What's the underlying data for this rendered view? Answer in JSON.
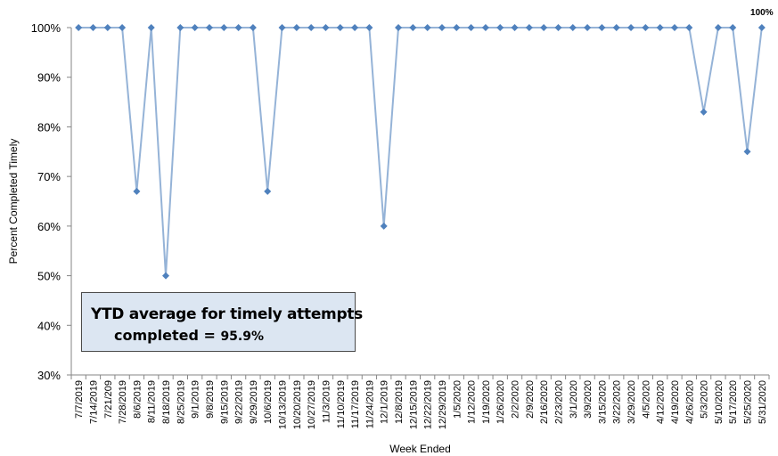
{
  "chart_data": {
    "type": "line",
    "xlabel": "Week Ended",
    "ylabel": "Percent Completed Timely",
    "ylim": [
      30,
      100
    ],
    "yticks": [
      "30%",
      "40%",
      "50%",
      "60%",
      "70%",
      "80%",
      "90%",
      "100%"
    ],
    "grid": false,
    "legend": "none",
    "series_color": "#4f81bd",
    "line_color": "#95b3d7",
    "categories": [
      "7/7/2019",
      "7/14/2019",
      "7/21/209",
      "7/28/2019",
      "8/6/2019",
      "8/11/2019",
      "8/18/2019",
      "8/25/2019",
      "9/1/2019",
      "9/8/2019",
      "9/15/2019",
      "9/22/2019",
      "9/29/2019",
      "10/6/2019",
      "10/13/2019",
      "10/20/2019",
      "10/27/2019",
      "11/3/2019",
      "11/10/2019",
      "11/17/2019",
      "11/24/2019",
      "12/1/2019",
      "12/8/2019",
      "12/15/2019",
      "12/22/2019",
      "12/29/2019",
      "1/5/2020",
      "1/12/2020",
      "1/19/2020",
      "1/26/2020",
      "2/2/2020",
      "2/9/2020",
      "2/16/2020",
      "2/23/2020",
      "3/1/2020",
      "3/9/2020",
      "3/15/2020",
      "3/22/2020",
      "3/29/2020",
      "4/5/2020",
      "4/12/2020",
      "4/19/2020",
      "4/26/2020",
      "5/3/2020",
      "5/10/2020",
      "5/17/2020",
      "5/25/2020",
      "5/31/2020"
    ],
    "values": [
      100,
      100,
      100,
      100,
      67,
      100,
      50,
      100,
      100,
      100,
      100,
      100,
      100,
      67,
      100,
      100,
      100,
      100,
      100,
      100,
      100,
      60,
      100,
      100,
      100,
      100,
      100,
      100,
      100,
      100,
      100,
      100,
      100,
      100,
      100,
      100,
      100,
      100,
      100,
      100,
      100,
      100,
      100,
      83,
      100,
      100,
      75,
      100
    ],
    "last_point_label": "100%"
  },
  "annotation": {
    "line1": "YTD average for timely attempts",
    "line2_label": "completed = ",
    "line2_value": "95.9%",
    "box_color": "#dce6f2"
  }
}
